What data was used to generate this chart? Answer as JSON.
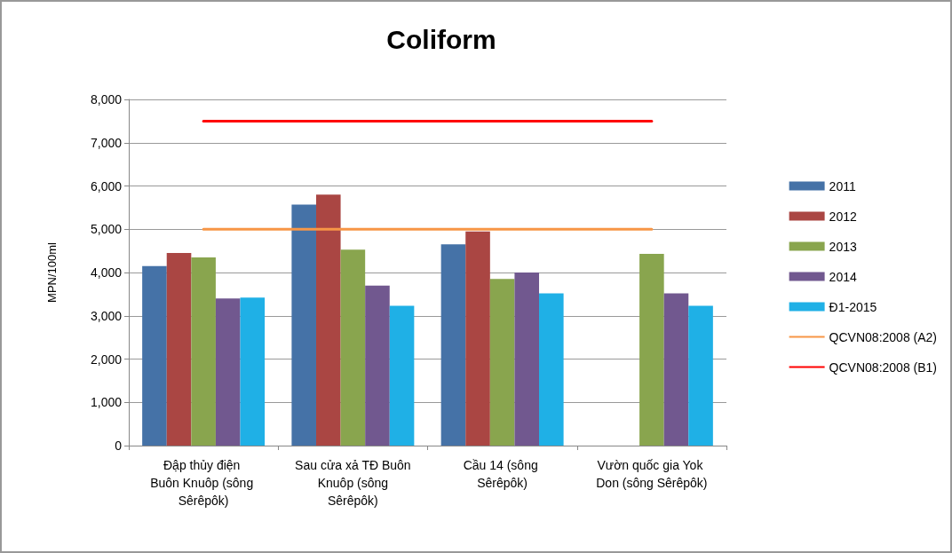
{
  "chart_data": {
    "type": "bar",
    "title": "Coliform",
    "ylabel": "MPN/100ml",
    "categories": [
      "Đập thủy điện Buôn Knuôp (sông Sêrêpôk)",
      "Sau cửa xả TĐ Buôn Knuôp (sông Sêrêpôk)",
      "Cầu 14 (sông Sêrêpôk)",
      "Vườn quốc gia Yok Don (sông Sêrêpôk)"
    ],
    "series": [
      {
        "name": "2011",
        "color": "#4572a7",
        "values": [
          4150,
          5570,
          4650,
          null
        ]
      },
      {
        "name": "2012",
        "color": "#aa4643",
        "values": [
          4450,
          5800,
          4950,
          null
        ]
      },
      {
        "name": "2013",
        "color": "#89a54e",
        "values": [
          4350,
          4530,
          3850,
          4430
        ]
      },
      {
        "name": "2014",
        "color": "#71588f",
        "values": [
          3400,
          3700,
          4000,
          3520
        ]
      },
      {
        "name": "Đ1-2015",
        "color": "#1fb0e6",
        "values": [
          3420,
          3230,
          3520,
          3230
        ]
      },
      {
        "name": "QCVN08:2008 (A2)",
        "type": "line",
        "color": "#f79646",
        "values": [
          5000,
          5000,
          5000,
          5000
        ]
      },
      {
        "name": "QCVN08:2008 (B1)",
        "type": "line",
        "color": "#ff0000",
        "values": [
          7500,
          7500,
          7500,
          7500
        ]
      }
    ],
    "ylim": [
      0,
      8000
    ],
    "yticks": [
      {
        "value": 0,
        "label": "0"
      },
      {
        "value": 1000,
        "label": "1,000"
      },
      {
        "value": 2000,
        "label": "2,000"
      },
      {
        "value": 3000,
        "label": "3,000"
      },
      {
        "value": 4000,
        "label": "4,000"
      },
      {
        "value": 5000,
        "label": "5,000"
      },
      {
        "value": 6000,
        "label": "6,000"
      },
      {
        "value": 7000,
        "label": "7,000"
      },
      {
        "value": 8000,
        "label": "8,000"
      }
    ],
    "grid": "y",
    "legend": "right",
    "marker": "none",
    "line_style": "solid"
  }
}
